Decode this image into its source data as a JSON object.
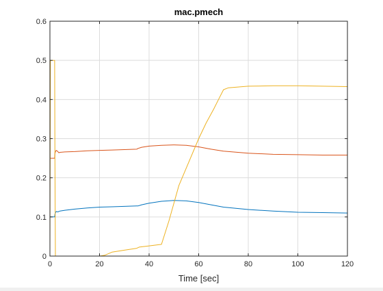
{
  "chart_data": {
    "type": "line",
    "title": "mac.pmech",
    "xlabel": "Time [sec]",
    "ylabel": "",
    "xlim": [
      0,
      120
    ],
    "ylim": [
      0,
      0.6
    ],
    "xticks": [
      0,
      20,
      40,
      60,
      80,
      100,
      120
    ],
    "yticks": [
      0,
      0.1,
      0.2,
      0.3,
      0.4,
      0.5,
      0.6
    ],
    "xtick_labels": [
      "0",
      "20",
      "40",
      "60",
      "80",
      "100",
      "120"
    ],
    "ytick_labels": [
      "0",
      "0.1",
      "0.2",
      "0.3",
      "0.4",
      "0.5",
      "0.6"
    ],
    "grid": true,
    "legend": "none",
    "series": [
      {
        "color": "#0072bd",
        "x": [
          0,
          1.9,
          2.0,
          2.3,
          2.6,
          3.0,
          3.3,
          3.6,
          4,
          6,
          10,
          15,
          20,
          25,
          30,
          35,
          35.5,
          37,
          40,
          45,
          50,
          55,
          60,
          65,
          70,
          80,
          90,
          100,
          110,
          120
        ],
        "y": [
          0.1,
          0.1,
          0.107,
          0.112,
          0.114,
          0.113,
          0.113,
          0.114,
          0.115,
          0.117,
          0.12,
          0.123,
          0.125,
          0.126,
          0.127,
          0.128,
          0.128,
          0.131,
          0.135,
          0.14,
          0.142,
          0.141,
          0.137,
          0.131,
          0.125,
          0.119,
          0.115,
          0.112,
          0.111,
          0.11
        ]
      },
      {
        "color": "#d95319",
        "x": [
          0,
          1.9,
          2.0,
          2.3,
          2.6,
          3.0,
          3.3,
          3.6,
          4,
          6,
          10,
          15,
          20,
          25,
          30,
          35,
          35.5,
          37,
          40,
          45,
          50,
          55,
          60,
          65,
          70,
          80,
          90,
          100,
          110,
          120
        ],
        "y": [
          0.25,
          0.25,
          0.262,
          0.268,
          0.27,
          0.268,
          0.266,
          0.264,
          0.265,
          0.266,
          0.267,
          0.269,
          0.27,
          0.271,
          0.272,
          0.273,
          0.275,
          0.278,
          0.281,
          0.283,
          0.284,
          0.283,
          0.279,
          0.273,
          0.268,
          0.263,
          0.26,
          0.259,
          0.258,
          0.258
        ]
      },
      {
        "color": "#edb120",
        "x": [
          0,
          0.2,
          0.3,
          1.9,
          2.0,
          2.2,
          10,
          15,
          20,
          22,
          25,
          30,
          35,
          36,
          40,
          45,
          48,
          52,
          56,
          60,
          63,
          66,
          68,
          70,
          72,
          80,
          90,
          100,
          110,
          120
        ],
        "y": [
          0,
          0.5,
          0.5,
          0.5,
          0.25,
          0,
          0,
          0,
          0,
          0.002,
          0.01,
          0.015,
          0.02,
          0.023,
          0.026,
          0.03,
          0.09,
          0.18,
          0.24,
          0.3,
          0.34,
          0.375,
          0.4,
          0.425,
          0.43,
          0.434,
          0.435,
          0.435,
          0.434,
          0.433
        ]
      }
    ]
  }
}
